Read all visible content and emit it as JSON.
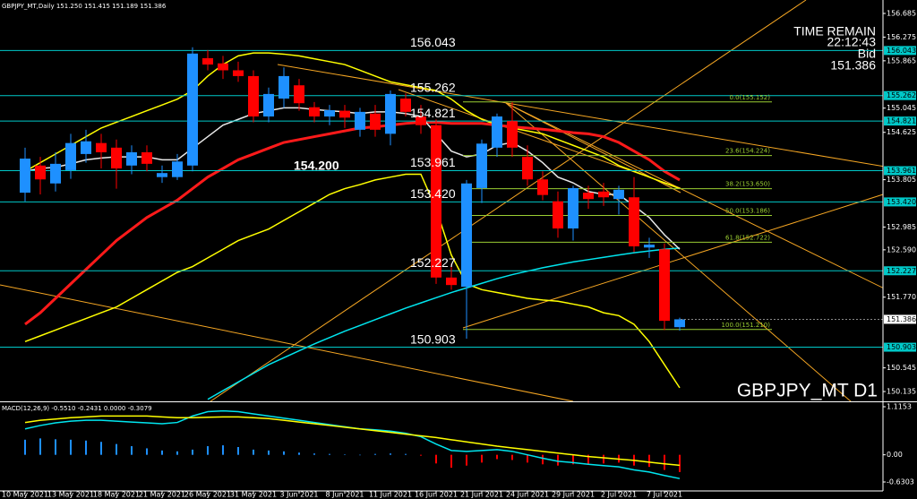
{
  "chart_data": {
    "type": "candlestick",
    "title": "GBPJPY_MT,Daily 151.250 151.415 151.189 151.386",
    "symbol_label": "GBPJPY_MT D1",
    "time_remain_label": "TIME REMAIN",
    "time_remain": "22:12:43",
    "bid_label": "Bid",
    "bid": {
      "value": 151.386,
      "label": "151.386"
    },
    "annotation": "154.200",
    "categories": [
      "10 May 2021",
      null,
      null,
      "13 May 2021",
      null,
      null,
      "18 May 2021",
      null,
      null,
      "21 May 2021",
      null,
      null,
      "26 May 2021",
      null,
      null,
      "31 May 2021",
      null,
      null,
      "3 Jun 2021",
      null,
      null,
      "8 Jun 2021",
      null,
      null,
      "11 Jun 2021",
      null,
      null,
      "16 Jun 2021",
      null,
      null,
      "21 Jun 2021",
      null,
      null,
      "24 Jun 2021",
      null,
      null,
      "29 Jun 2021",
      null,
      null,
      "2 Jul 2021",
      null,
      null,
      "7 Jul 2021",
      null
    ],
    "open": [
      153.58,
      154.05,
      153.74,
      153.97,
      154.25,
      154.44,
      154.36,
      154.05,
      154.28,
      153.85,
      153.85,
      154.05,
      155.91,
      155.82,
      155.7,
      155.6,
      154.9,
      155.21,
      155.44,
      155.06,
      154.9,
      155.0,
      154.67,
      154.95,
      154.6,
      155.21,
      154.9,
      154.75,
      152.11,
      151.95,
      153.66,
      154.36,
      154.82,
      154.2,
      153.81,
      153.43,
      152.96,
      153.58,
      153.6,
      153.47,
      153.5,
      152.63,
      152.6,
      151.25
    ],
    "high": [
      154.36,
      154.2,
      154.28,
      154.6,
      154.67,
      154.6,
      154.5,
      154.4,
      154.4,
      154.05,
      154.25,
      156.1,
      156.05,
      155.95,
      155.85,
      155.7,
      155.4,
      155.75,
      155.55,
      155.15,
      155.1,
      155.1,
      155.05,
      155.1,
      155.35,
      155.3,
      155.1,
      154.85,
      152.35,
      153.8,
      154.5,
      154.95,
      155.15,
      154.4,
      153.95,
      153.6,
      153.7,
      153.7,
      153.75,
      153.7,
      153.85,
      152.8,
      152.7,
      151.415
    ],
    "low": [
      153.43,
      153.55,
      153.6,
      153.82,
      154.1,
      154.0,
      153.65,
      153.9,
      153.95,
      153.75,
      153.8,
      153.95,
      155.7,
      155.55,
      155.5,
      154.8,
      154.8,
      155.05,
      155.0,
      154.8,
      154.75,
      154.7,
      154.55,
      154.55,
      154.4,
      154.9,
      154.6,
      152.0,
      151.9,
      151.05,
      153.4,
      154.2,
      154.2,
      153.7,
      153.45,
      152.8,
      152.75,
      153.3,
      153.35,
      153.2,
      152.55,
      152.45,
      151.2,
      151.189
    ],
    "close": [
      154.17,
      153.81,
      154.08,
      154.44,
      154.47,
      154.28,
      154.0,
      154.28,
      154.08,
      153.92,
      154.12,
      155.99,
      155.8,
      155.7,
      155.6,
      154.9,
      155.29,
      155.6,
      155.13,
      154.9,
      155.01,
      154.88,
      154.98,
      154.67,
      155.29,
      154.98,
      154.75,
      152.11,
      151.98,
      153.74,
      154.43,
      154.9,
      154.36,
      153.81,
      153.54,
      152.96,
      153.66,
      153.47,
      153.5,
      153.63,
      152.65,
      152.68,
      151.36,
      151.386
    ],
    "up_color": "#1e90ff",
    "down_color": "#ff0000",
    "ylim": [
      149.965,
      156.918
    ],
    "yticks": [
      {
        "value": 156.685,
        "label": "156.685"
      },
      {
        "value": 156.275,
        "label": "156.275"
      },
      {
        "value": 155.865,
        "label": "155.865"
      },
      {
        "value": 155.045,
        "label": "155.045"
      },
      {
        "value": 154.625,
        "label": "154.625"
      },
      {
        "value": 153.805,
        "label": "153.805"
      },
      {
        "value": 152.985,
        "label": "152.985"
      },
      {
        "value": 152.59,
        "label": "152.590"
      },
      {
        "value": 151.77,
        "label": "151.770"
      },
      {
        "value": 150.545,
        "label": "150.545"
      },
      {
        "value": 150.135,
        "label": "150.135"
      }
    ],
    "grid": false,
    "indicators": [
      {
        "color": "#ffff00",
        "width": 1.5,
        "values": [
          153.95,
          154.1,
          154.25,
          154.4,
          154.55,
          154.7,
          154.8,
          154.9,
          155.0,
          155.1,
          155.2,
          155.35,
          155.6,
          155.8,
          155.95,
          156.0,
          156.0,
          155.98,
          155.95,
          155.9,
          155.85,
          155.8,
          155.7,
          155.6,
          155.5,
          155.45,
          155.4,
          155.35,
          155.2,
          155.0,
          154.85,
          154.75,
          154.7,
          154.65,
          154.6,
          154.5,
          154.4,
          154.3,
          154.2,
          154.05,
          153.95,
          153.85,
          153.75,
          153.65
        ]
      },
      {
        "color": "#ffff00",
        "width": 1.5,
        "values": [
          151.0,
          151.1,
          151.2,
          151.3,
          151.4,
          151.5,
          151.6,
          151.75,
          151.9,
          152.05,
          152.2,
          152.3,
          152.45,
          152.6,
          152.75,
          152.85,
          152.95,
          153.1,
          153.25,
          153.4,
          153.55,
          153.65,
          153.72,
          153.8,
          153.85,
          153.9,
          153.9,
          153.3,
          152.5,
          152.0,
          151.9,
          151.85,
          151.8,
          151.75,
          151.72,
          151.7,
          151.65,
          151.6,
          151.5,
          151.45,
          151.3,
          151.0,
          150.6,
          150.2
        ]
      },
      {
        "color": "#00e5ee",
        "width": 1.5,
        "values": [
          null,
          null,
          null,
          null,
          null,
          null,
          null,
          null,
          null,
          null,
          null,
          null,
          150.0,
          150.15,
          150.3,
          150.45,
          150.6,
          150.72,
          150.84,
          150.96,
          151.07,
          151.18,
          151.28,
          151.38,
          151.48,
          151.58,
          151.67,
          151.76,
          151.85,
          151.93,
          152.01,
          152.09,
          152.16,
          152.22,
          152.28,
          152.33,
          152.38,
          152.42,
          152.46,
          152.5,
          152.54,
          152.57,
          152.6,
          152.62
        ]
      },
      {
        "color": "#ff1a1a",
        "width": 3,
        "values": [
          151.3,
          151.5,
          151.75,
          152.0,
          152.25,
          152.5,
          152.75,
          152.95,
          153.15,
          153.3,
          153.45,
          153.65,
          153.85,
          154.0,
          154.15,
          154.25,
          154.35,
          154.45,
          154.5,
          154.55,
          154.6,
          154.65,
          154.7,
          154.72,
          154.75,
          154.78,
          154.8,
          154.8,
          154.78,
          154.78,
          154.78,
          154.75,
          154.72,
          154.7,
          154.68,
          154.65,
          154.62,
          154.6,
          154.55,
          154.45,
          154.3,
          154.15,
          153.95,
          153.8
        ]
      },
      {
        "color": "#e8e8e8",
        "width": 1.5,
        "values": [
          153.95,
          154.0,
          154.02,
          154.08,
          154.15,
          154.18,
          154.2,
          154.2,
          154.2,
          154.15,
          154.15,
          154.35,
          154.55,
          154.75,
          154.85,
          154.95,
          155.0,
          155.05,
          155.05,
          155.02,
          155.0,
          154.98,
          154.95,
          154.98,
          154.98,
          154.95,
          154.9,
          154.6,
          154.3,
          154.2,
          154.25,
          154.4,
          154.45,
          154.3,
          154.1,
          153.85,
          153.75,
          153.6,
          153.55,
          153.55,
          153.35,
          153.15,
          152.85,
          152.6
        ]
      }
    ],
    "level_color": "#00c8c8",
    "levels": [
      {
        "value": 156.043,
        "label": "156.043"
      },
      {
        "value": 155.262,
        "label": "155.262"
      },
      {
        "value": 154.821,
        "label": "154.821"
      },
      {
        "value": 153.961,
        "label": "153.961"
      },
      {
        "value": 153.42,
        "label": "153.420"
      },
      {
        "value": 152.227,
        "label": "152.227"
      },
      {
        "value": 150.903,
        "label": "150.903"
      }
    ],
    "fib_color": "#9acd32",
    "fibs": [
      {
        "value": 155.152,
        "label": "0.0(155.152)"
      },
      {
        "value": 154.224,
        "label": "23.6(154.224)"
      },
      {
        "value": 153.65,
        "label": "38.2(153.650)"
      },
      {
        "value": 153.186,
        "label": "50.0(153.186)"
      },
      {
        "value": 152.722,
        "label": "61.8(152.722)"
      },
      {
        "value": 151.21,
        "label": "100.0(151.210)"
      }
    ],
    "macd": {
      "title": "MACD(12,26,9) -0.5510 -0.2431 0.0000 -0.3079",
      "ylim": [
        -0.838,
        1.219
      ],
      "yticks": [
        {
          "value": 1.1153,
          "label": "1.1153"
        },
        {
          "value": 0,
          "label": "0.00"
        },
        {
          "value": -0.6303,
          "label": "-0.6303"
        }
      ],
      "up_color": "#1e90ff",
      "down_color": "#ff0000",
      "histogram": [
        0.35,
        0.38,
        0.36,
        0.35,
        0.33,
        0.3,
        0.25,
        0.2,
        0.15,
        0.1,
        0.08,
        0.12,
        0.2,
        0.22,
        0.18,
        0.12,
        0.1,
        0.08,
        0.05,
        0.03,
        0.02,
        0.01,
        0.0,
        0.02,
        0.03,
        0.02,
        -0.02,
        -0.2,
        -0.3,
        -0.25,
        -0.18,
        -0.1,
        -0.12,
        -0.18,
        -0.22,
        -0.25,
        -0.22,
        -0.22,
        -0.2,
        -0.18,
        -0.25,
        -0.28,
        -0.35,
        -0.4
      ],
      "series": [
        {
          "color": "#00e5ee",
          "values": [
            0.6,
            0.68,
            0.74,
            0.78,
            0.8,
            0.8,
            0.78,
            0.76,
            0.74,
            0.72,
            0.75,
            0.9,
            1.0,
            1.02,
            1.0,
            0.95,
            0.9,
            0.85,
            0.8,
            0.75,
            0.7,
            0.65,
            0.6,
            0.58,
            0.55,
            0.5,
            0.42,
            0.25,
            0.1,
            0.08,
            0.1,
            0.12,
            0.08,
            0.0,
            -0.08,
            -0.15,
            -0.18,
            -0.22,
            -0.25,
            -0.28,
            -0.35,
            -0.4,
            -0.48,
            -0.551
          ]
        },
        {
          "color": "#ffff00",
          "values": [
            0.75,
            0.8,
            0.83,
            0.86,
            0.88,
            0.9,
            0.9,
            0.9,
            0.9,
            0.88,
            0.86,
            0.86,
            0.87,
            0.88,
            0.88,
            0.86,
            0.84,
            0.8,
            0.76,
            0.72,
            0.68,
            0.64,
            0.6,
            0.56,
            0.52,
            0.48,
            0.44,
            0.4,
            0.35,
            0.3,
            0.25,
            0.2,
            0.16,
            0.12,
            0.08,
            0.04,
            0.0,
            -0.04,
            -0.07,
            -0.1,
            -0.13,
            -0.17,
            -0.21,
            -0.2431
          ]
        }
      ]
    }
  }
}
